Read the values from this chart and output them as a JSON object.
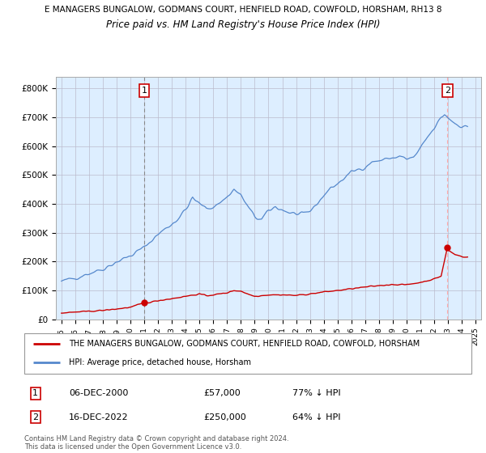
{
  "title_line1": "E MANAGERS BUNGALOW, GODMANS COURT, HENFIELD ROAD, COWFOLD, HORSHAM, RH13 8",
  "title_line2": "Price paid vs. HM Land Registry's House Price Index (HPI)",
  "ylim": [
    0,
    840000
  ],
  "yticks": [
    0,
    100000,
    200000,
    300000,
    400000,
    500000,
    600000,
    700000,
    800000
  ],
  "ytick_labels": [
    "£0",
    "£100K",
    "£200K",
    "£300K",
    "£400K",
    "£500K",
    "£600K",
    "£700K",
    "£800K"
  ],
  "hpi_color": "#5588cc",
  "price_color": "#cc0000",
  "chart_bg": "#ddeeff",
  "legend_label1": "THE MANAGERS BUNGALOW, GODMANS COURT, HENFIELD ROAD, COWFOLD, HORSHAM",
  "legend_label2": "HPI: Average price, detached house, Horsham",
  "annotation1_num": "1",
  "annotation1_date": "06-DEC-2000",
  "annotation1_price": "£57,000",
  "annotation1_hpi": "77% ↓ HPI",
  "annotation2_num": "2",
  "annotation2_date": "16-DEC-2022",
  "annotation2_price": "£250,000",
  "annotation2_hpi": "64% ↓ HPI",
  "footnote": "Contains HM Land Registry data © Crown copyright and database right 2024.\nThis data is licensed under the Open Government Licence v3.0.",
  "grid_color": "#bbbbcc",
  "sale1_x": 2001.0,
  "sale1_y": 57000,
  "sale2_x": 2022.96,
  "sale2_y": 250000,
  "vline1_color": "#888888",
  "vline2_color": "#ffaaaa",
  "xtick_years": [
    1995,
    1996,
    1997,
    1998,
    1999,
    2000,
    2001,
    2002,
    2003,
    2004,
    2005,
    2006,
    2007,
    2008,
    2009,
    2010,
    2011,
    2012,
    2013,
    2014,
    2015,
    2016,
    2017,
    2018,
    2019,
    2020,
    2021,
    2022,
    2023,
    2024,
    2025
  ]
}
